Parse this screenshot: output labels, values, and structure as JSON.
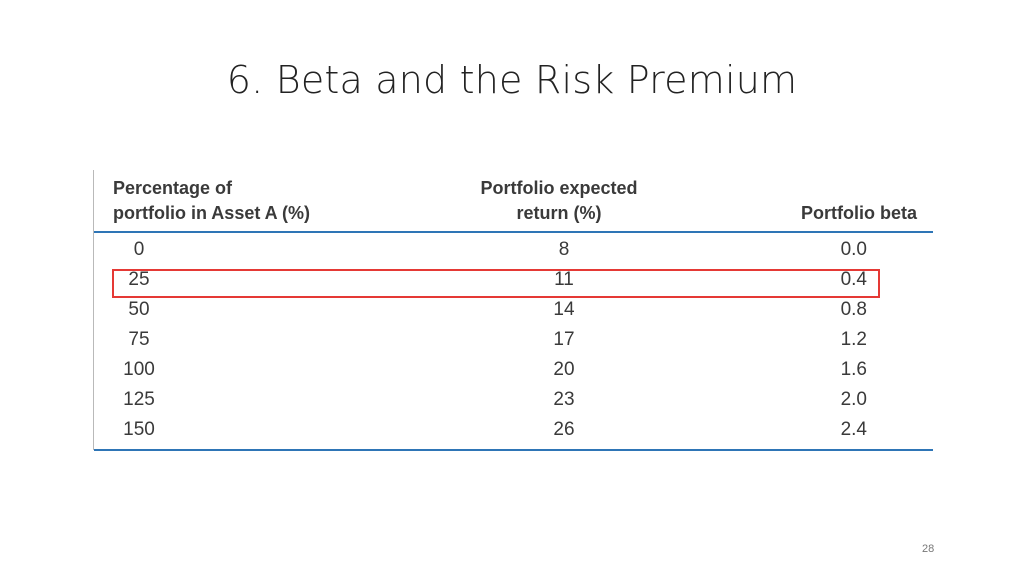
{
  "slide": {
    "title": "6. Beta and the Risk Premium",
    "page_number": "28"
  },
  "table": {
    "headers": {
      "col1_line1": "Percentage of",
      "col1_line2": "portfolio in Asset A (%)",
      "col2_line1": "Portfolio expected",
      "col2_line2": "return (%)",
      "col3": "Portfolio beta"
    },
    "rows": [
      {
        "pct": "0",
        "ret": "8",
        "beta": "0.0"
      },
      {
        "pct": "25",
        "ret": "11",
        "beta": "0.4"
      },
      {
        "pct": "50",
        "ret": "14",
        "beta": "0.8"
      },
      {
        "pct": "75",
        "ret": "17",
        "beta": "1.2"
      },
      {
        "pct": "100",
        "ret": "20",
        "beta": "1.6"
      },
      {
        "pct": "125",
        "ret": "23",
        "beta": "2.0"
      },
      {
        "pct": "150",
        "ret": "26",
        "beta": "2.4"
      }
    ],
    "highlighted_row_index": 1
  },
  "colors": {
    "rule": "#2e75b6",
    "highlight": "#e53935"
  }
}
